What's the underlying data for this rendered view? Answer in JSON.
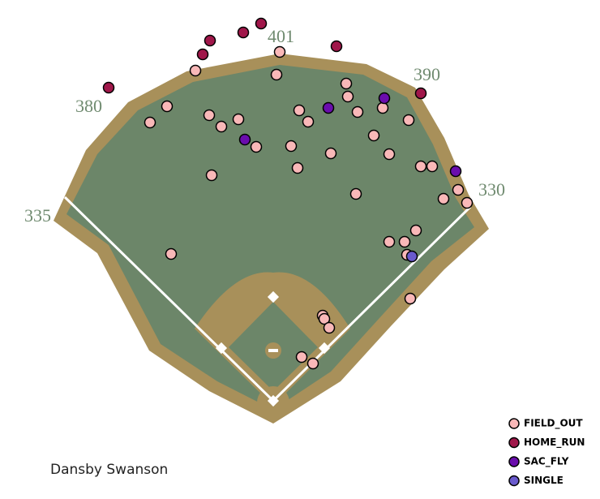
{
  "chart_data": {
    "type": "scatter",
    "title": "Dansby Swanson",
    "annotations": [
      "380",
      "401",
      "390",
      "335",
      "330"
    ],
    "xlim": [
      0,
      740
    ],
    "ylim": [
      615,
      0
    ],
    "series": [
      {
        "name": "FIELD_OUT",
        "color": "#f9b8b8",
        "x": [
          345,
          241,
          341,
          427,
          429,
          206,
          185,
          258,
          273,
          294,
          369,
          380,
          441,
          472,
          504,
          461,
          316,
          359,
          408,
          480,
          367,
          519,
          533,
          261,
          439,
          547,
          565,
          576,
          513,
          480,
          499,
          502,
          211,
          506,
          398,
          400,
          406,
          372,
          386
        ],
        "values": [
          64,
          87,
          92,
          103,
          119,
          131,
          151,
          142,
          156,
          147,
          136,
          150,
          138,
          133,
          148,
          167,
          181,
          180,
          189,
          190,
          207,
          205,
          205,
          216,
          239,
          245,
          234,
          250,
          284,
          298,
          298,
          314,
          313,
          368,
          389,
          393,
          404,
          440,
          448
        ]
      },
      {
        "name": "HOME_RUN",
        "color": "#a0174a",
        "x": [
          134,
          250,
          259,
          300,
          322,
          415,
          519
        ],
        "values": [
          108,
          67,
          50,
          40,
          29,
          57,
          115
        ]
      },
      {
        "name": "SAC_FLY",
        "color": "#6a0dad",
        "x": [
          405,
          474,
          302,
          562
        ],
        "values": [
          133,
          121,
          172,
          211
        ]
      },
      {
        "name": "SINGLE",
        "color": "#6a5acd",
        "x": [
          508
        ],
        "values": [
          316
        ]
      }
    ]
  }
}
